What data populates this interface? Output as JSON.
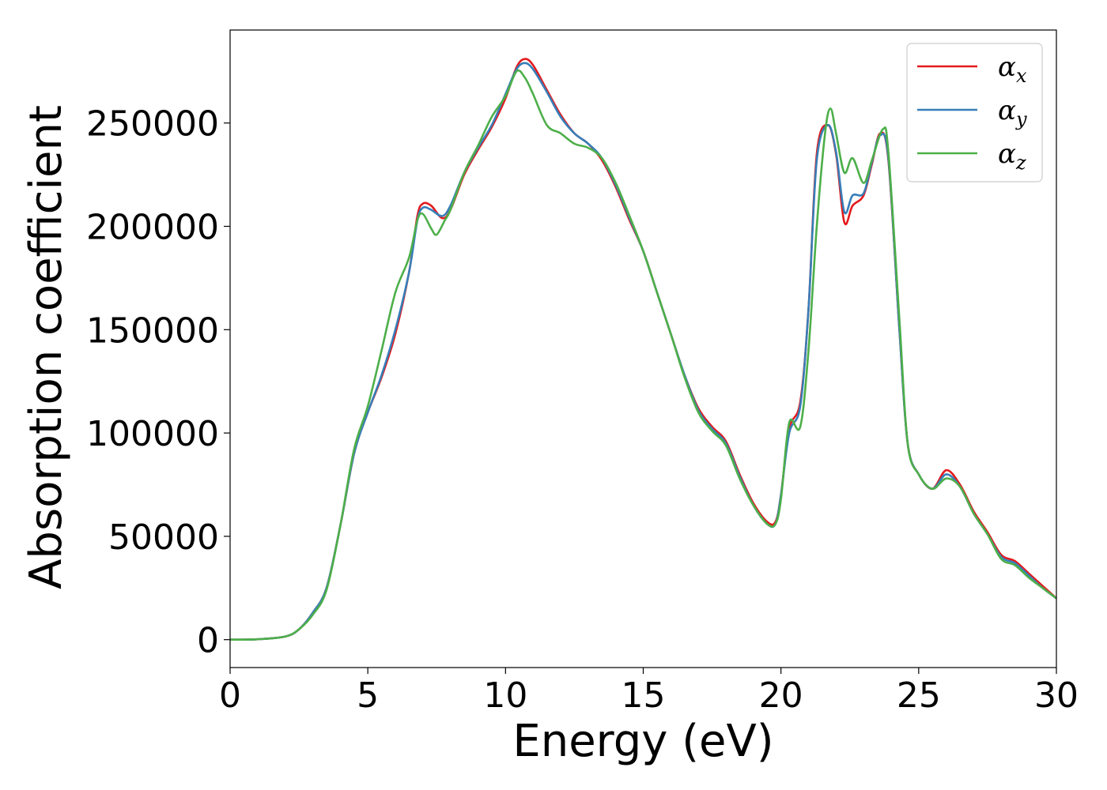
{
  "chart_data": {
    "type": "line",
    "title": "",
    "xlabel": "Energy (eV)",
    "ylabel": "Absorption coefficient",
    "xlim": [
      0,
      30
    ],
    "ylim": [
      -13500,
      295000
    ],
    "xticks": [
      "0",
      "5",
      "10",
      "15",
      "20",
      "25",
      "30"
    ],
    "xtick_values": [
      0,
      5,
      10,
      15,
      20,
      25,
      30
    ],
    "yticks": [
      "0",
      "50000",
      "100000",
      "150000",
      "200000",
      "250000"
    ],
    "ytick_values": [
      0,
      50000,
      100000,
      150000,
      200000,
      250000
    ],
    "grid": false,
    "legend_position": "top-right",
    "series": [
      {
        "name": "α",
        "subscript": "x",
        "color": "#e41a1c",
        "points": [
          [
            0,
            0
          ],
          [
            1,
            200
          ],
          [
            2,
            1500
          ],
          [
            2.5,
            5000
          ],
          [
            3,
            13000
          ],
          [
            3.5,
            25000
          ],
          [
            4,
            55000
          ],
          [
            4.5,
            90000
          ],
          [
            5,
            110000
          ],
          [
            5.5,
            127000
          ],
          [
            6,
            148000
          ],
          [
            6.5,
            178000
          ],
          [
            6.8,
            205000
          ],
          [
            7,
            211000
          ],
          [
            7.3,
            210000
          ],
          [
            7.7,
            204000
          ],
          [
            8,
            208000
          ],
          [
            8.5,
            225000
          ],
          [
            9,
            237000
          ],
          [
            9.5,
            248000
          ],
          [
            10,
            262000
          ],
          [
            10.4,
            277000
          ],
          [
            10.7,
            281000
          ],
          [
            11,
            278000
          ],
          [
            11.5,
            266000
          ],
          [
            12,
            254000
          ],
          [
            12.5,
            245000
          ],
          [
            13,
            240000
          ],
          [
            13.5,
            232000
          ],
          [
            14,
            219000
          ],
          [
            14.5,
            203000
          ],
          [
            15,
            188000
          ],
          [
            15.5,
            168000
          ],
          [
            16,
            148000
          ],
          [
            16.5,
            128000
          ],
          [
            17,
            112000
          ],
          [
            17.5,
            103000
          ],
          [
            18,
            96000
          ],
          [
            18.5,
            80000
          ],
          [
            19,
            66000
          ],
          [
            19.5,
            57000
          ],
          [
            19.8,
            57000
          ],
          [
            20,
            70000
          ],
          [
            20.3,
            102000
          ],
          [
            20.7,
            115000
          ],
          [
            21,
            160000
          ],
          [
            21.3,
            235000
          ],
          [
            21.7,
            249000
          ],
          [
            22,
            235000
          ],
          [
            22.3,
            202000
          ],
          [
            22.6,
            210000
          ],
          [
            23,
            215000
          ],
          [
            23.3,
            230000
          ],
          [
            23.6,
            245000
          ],
          [
            23.9,
            232000
          ],
          [
            24.3,
            150000
          ],
          [
            24.6,
            95000
          ],
          [
            25,
            80000
          ],
          [
            25.5,
            73000
          ],
          [
            26,
            82000
          ],
          [
            26.5,
            75000
          ],
          [
            27,
            62000
          ],
          [
            27.5,
            52000
          ],
          [
            28,
            41000
          ],
          [
            28.5,
            38000
          ],
          [
            29,
            32000
          ],
          [
            29.5,
            26000
          ],
          [
            30,
            20000
          ]
        ]
      },
      {
        "name": "α",
        "subscript": "y",
        "color": "#377eb8",
        "points": [
          [
            0,
            0
          ],
          [
            1,
            200
          ],
          [
            2,
            1500
          ],
          [
            2.5,
            5000
          ],
          [
            3,
            13000
          ],
          [
            3.5,
            25000
          ],
          [
            4,
            55000
          ],
          [
            4.5,
            90000
          ],
          [
            5,
            110000
          ],
          [
            5.5,
            128000
          ],
          [
            6,
            150000
          ],
          [
            6.5,
            178000
          ],
          [
            6.8,
            203000
          ],
          [
            7,
            209000
          ],
          [
            7.3,
            208000
          ],
          [
            7.7,
            205000
          ],
          [
            8,
            210000
          ],
          [
            8.5,
            226000
          ],
          [
            9,
            238000
          ],
          [
            9.5,
            249000
          ],
          [
            10,
            264000
          ],
          [
            10.4,
            276000
          ],
          [
            10.7,
            279000
          ],
          [
            11,
            276000
          ],
          [
            11.5,
            265000
          ],
          [
            12,
            253000
          ],
          [
            12.5,
            245000
          ],
          [
            13,
            240000
          ],
          [
            13.5,
            233000
          ],
          [
            14,
            220000
          ],
          [
            14.5,
            204000
          ],
          [
            15,
            188000
          ],
          [
            15.5,
            168000
          ],
          [
            16,
            148000
          ],
          [
            16.5,
            128000
          ],
          [
            17,
            111000
          ],
          [
            17.5,
            102000
          ],
          [
            18,
            95000
          ],
          [
            18.5,
            79000
          ],
          [
            19,
            65000
          ],
          [
            19.5,
            56000
          ],
          [
            19.8,
            56000
          ],
          [
            20,
            70000
          ],
          [
            20.3,
            100000
          ],
          [
            20.7,
            113000
          ],
          [
            21,
            160000
          ],
          [
            21.3,
            232000
          ],
          [
            21.7,
            249000
          ],
          [
            22,
            236000
          ],
          [
            22.3,
            207000
          ],
          [
            22.6,
            215000
          ],
          [
            23,
            216000
          ],
          [
            23.3,
            231000
          ],
          [
            23.6,
            244000
          ],
          [
            23.9,
            233000
          ],
          [
            24.3,
            150000
          ],
          [
            24.6,
            95000
          ],
          [
            25,
            80000
          ],
          [
            25.5,
            73000
          ],
          [
            26,
            80000
          ],
          [
            26.5,
            74000
          ],
          [
            27,
            61000
          ],
          [
            27.5,
            51000
          ],
          [
            28,
            40000
          ],
          [
            28.5,
            37000
          ],
          [
            29,
            31000
          ],
          [
            29.5,
            25000
          ],
          [
            30,
            20000
          ]
        ]
      },
      {
        "name": "α",
        "subscript": "z",
        "color": "#4daf4a",
        "points": [
          [
            0,
            0
          ],
          [
            1,
            200
          ],
          [
            2,
            1500
          ],
          [
            2.5,
            5000
          ],
          [
            3,
            12000
          ],
          [
            3.5,
            24000
          ],
          [
            4,
            55000
          ],
          [
            4.5,
            92000
          ],
          [
            5,
            113000
          ],
          [
            5.5,
            140000
          ],
          [
            6,
            168000
          ],
          [
            6.5,
            185000
          ],
          [
            6.8,
            203000
          ],
          [
            7,
            206000
          ],
          [
            7.3,
            199000
          ],
          [
            7.5,
            196000
          ],
          [
            7.8,
            203000
          ],
          [
            8,
            208000
          ],
          [
            8.5,
            226000
          ],
          [
            9,
            239000
          ],
          [
            9.5,
            253000
          ],
          [
            10,
            263000
          ],
          [
            10.4,
            275000
          ],
          [
            10.7,
            272000
          ],
          [
            11,
            264000
          ],
          [
            11.5,
            249000
          ],
          [
            12,
            245000
          ],
          [
            12.5,
            240000
          ],
          [
            13,
            238000
          ],
          [
            13.5,
            233000
          ],
          [
            14,
            221000
          ],
          [
            14.5,
            205000
          ],
          [
            15,
            188000
          ],
          [
            15.5,
            168000
          ],
          [
            16,
            148000
          ],
          [
            16.5,
            127000
          ],
          [
            17,
            110000
          ],
          [
            17.5,
            101000
          ],
          [
            18,
            94000
          ],
          [
            18.5,
            78000
          ],
          [
            19,
            65000
          ],
          [
            19.5,
            56000
          ],
          [
            19.8,
            56000
          ],
          [
            20,
            68000
          ],
          [
            20.3,
            105000
          ],
          [
            20.7,
            103000
          ],
          [
            21,
            140000
          ],
          [
            21.3,
            200000
          ],
          [
            21.6,
            245000
          ],
          [
            21.8,
            257000
          ],
          [
            22,
            245000
          ],
          [
            22.3,
            226000
          ],
          [
            22.6,
            233000
          ],
          [
            23,
            221000
          ],
          [
            23.3,
            232000
          ],
          [
            23.7,
            247000
          ],
          [
            23.9,
            236000
          ],
          [
            24.3,
            155000
          ],
          [
            24.6,
            95000
          ],
          [
            25,
            80000
          ],
          [
            25.5,
            73000
          ],
          [
            26,
            78000
          ],
          [
            26.5,
            74000
          ],
          [
            27,
            61000
          ],
          [
            27.5,
            51000
          ],
          [
            28,
            39000
          ],
          [
            28.5,
            36000
          ],
          [
            29,
            30000
          ],
          [
            29.5,
            25000
          ],
          [
            30,
            20000
          ]
        ]
      }
    ]
  }
}
